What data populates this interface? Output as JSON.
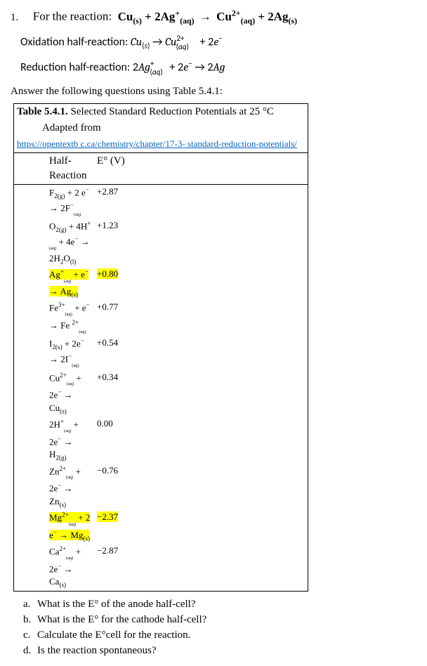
{
  "question_number": "1.",
  "question_lead": "For the reaction:",
  "main_equation": "Cu(s) + 2Ag+(aq) → Cu2+(aq) + 2Ag(s)",
  "oxidation_label": "Oxidation half-reaction:",
  "reduction_label": "Reduction half-reaction:",
  "answer_instr": "Answer the following questions using Table 5.4.1:",
  "table": {
    "title_bold": "Table 5.4.1.",
    "title_rest": " Selected Standard Reduction Potentials at 25 °C",
    "adapted": "Adapted from",
    "url": "https://opentextb c.ca/chemistry/chapter/17-3- standard-reduction-potentials/",
    "col1_header": "Half-Reaction",
    "col2_header": "E° (V)",
    "rows": [
      {
        "r": "F2(g) + 2 e⁻ → 2F⁻(aq)",
        "v": "+2.87",
        "hl": false
      },
      {
        "r": "O2(g) + 4H+(aq) + 4e⁻ → 2H2O(l)",
        "v": "+1.23",
        "hl": false
      },
      {
        "r": "Ag+(aq) + e⁻ → Ag(s)",
        "v": "+0.80",
        "hl": true
      },
      {
        "r": "Fe3+(aq) + e⁻ → Fe 2+(aq)",
        "v": "+0.77",
        "hl": false
      },
      {
        "r": "I2(s)  +  2e⁻ → 2I⁻(aq)",
        "v": "+0.54",
        "hl": false
      },
      {
        "r": "Cu2+(aq) + 2e⁻ → Cu(s)",
        "v": "+0.34",
        "hl": false
      },
      {
        "r": "2H+(aq) + 2e⁻ → H2(g)",
        "v": "0.00",
        "hl": false
      },
      {
        "r": "Zn2+(aq) + 2e⁻ → Zn(s)",
        "v": "−0.76",
        "hl": false
      },
      {
        "r": "Mg2+(aq) + 2 e⁻ → Mg(s)",
        "v": "−2.37",
        "hl": true
      },
      {
        "r": "Ca2+(aq) + 2e⁻ → Ca(s)",
        "v": "−2.87",
        "hl": false
      }
    ]
  },
  "subquestions": {
    "a": "What is the E° of the anode half-cell?",
    "b": "What is the E° for the cathode half-cell?",
    "c": "Calculate the E°cell for the reaction.",
    "d": "Is the reaction spontaneous?"
  }
}
